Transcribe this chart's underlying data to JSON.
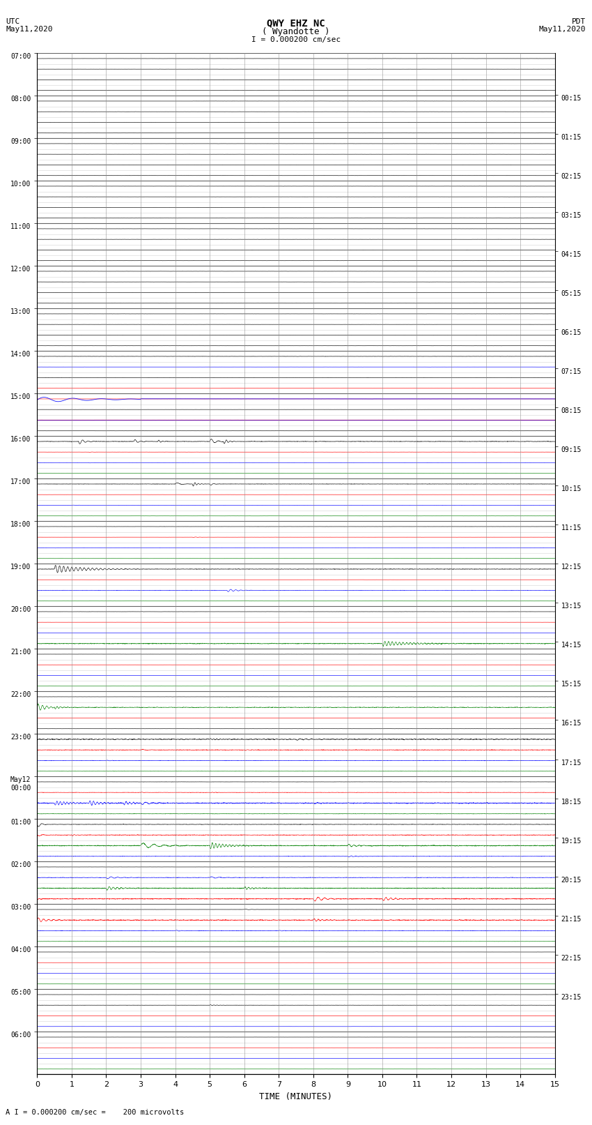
{
  "title_line1": "QWY EHZ NC",
  "title_line2": "( Wyandotte )",
  "scale_label": "I = 0.000200 cm/sec",
  "left_label_top": "UTC",
  "left_label_date": "May11,2020",
  "right_label_top": "PDT",
  "right_label_date": "May11,2020",
  "bottom_label": "TIME (MINUTES)",
  "bottom_note": "A I = 0.000200 cm/sec =    200 microvolts",
  "xlabel_ticks": [
    0,
    1,
    2,
    3,
    4,
    5,
    6,
    7,
    8,
    9,
    10,
    11,
    12,
    13,
    14,
    15
  ],
  "left_times_utc": [
    "07:00",
    "",
    "",
    "",
    "08:00",
    "",
    "",
    "",
    "09:00",
    "",
    "",
    "",
    "10:00",
    "",
    "",
    "",
    "11:00",
    "",
    "",
    "",
    "12:00",
    "",
    "",
    "",
    "13:00",
    "",
    "",
    "",
    "14:00",
    "",
    "",
    "",
    "15:00",
    "",
    "",
    "",
    "16:00",
    "",
    "",
    "",
    "17:00",
    "",
    "",
    "",
    "18:00",
    "",
    "",
    "",
    "19:00",
    "",
    "",
    "",
    "20:00",
    "",
    "",
    "",
    "21:00",
    "",
    "",
    "",
    "22:00",
    "",
    "",
    "",
    "23:00",
    "",
    "",
    "",
    "May12\n00:00",
    "",
    "",
    "",
    "01:00",
    "",
    "",
    "",
    "02:00",
    "",
    "",
    "",
    "03:00",
    "",
    "",
    "",
    "04:00",
    "",
    "",
    "",
    "05:00",
    "",
    "",
    "",
    "06:00",
    "",
    "",
    ""
  ],
  "right_times_pdt": [
    "00:15",
    "",
    "",
    "",
    "01:15",
    "",
    "",
    "",
    "02:15",
    "",
    "",
    "",
    "03:15",
    "",
    "",
    "",
    "04:15",
    "",
    "",
    "",
    "05:15",
    "",
    "",
    "",
    "06:15",
    "",
    "",
    "",
    "07:15",
    "",
    "",
    "",
    "08:15",
    "",
    "",
    "",
    "09:15",
    "",
    "",
    "",
    "10:15",
    "",
    "",
    "",
    "11:15",
    "",
    "",
    "",
    "12:15",
    "",
    "",
    "",
    "13:15",
    "",
    "",
    "",
    "14:15",
    "",
    "",
    "",
    "15:15",
    "",
    "",
    "",
    "16:15",
    "",
    "",
    "",
    "17:15",
    "",
    "",
    "",
    "18:15",
    "",
    "",
    "",
    "19:15",
    "",
    "",
    "",
    "20:15",
    "",
    "",
    "",
    "21:15",
    "",
    "",
    "",
    "22:15",
    "",
    "",
    "",
    "23:15",
    "",
    "",
    ""
  ],
  "num_hours": 24,
  "sub_rows": 4,
  "time_span_minutes": 15,
  "bg_color": "#ffffff",
  "grid_color": "#aaaaaa",
  "seed": 42
}
